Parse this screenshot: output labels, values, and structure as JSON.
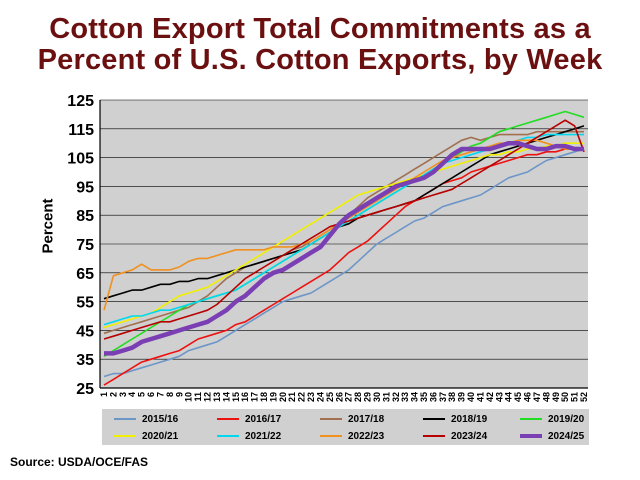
{
  "title_line1": "Cotton Export Total Commitments as a",
  "title_line2": "Percent of U.S. Cotton Exports, by Week",
  "source": "Source:  USDA/OCE/FAS",
  "chart_data": {
    "type": "line",
    "ylabel": "Percent",
    "ylim": [
      25,
      125
    ],
    "yticks": [
      25,
      35,
      45,
      55,
      65,
      75,
      85,
      95,
      105,
      115,
      125
    ],
    "xlim": [
      1,
      52
    ],
    "x": [
      1,
      2,
      3,
      4,
      5,
      6,
      7,
      8,
      9,
      10,
      11,
      12,
      13,
      14,
      15,
      16,
      17,
      18,
      19,
      20,
      21,
      22,
      23,
      24,
      25,
      26,
      27,
      28,
      29,
      30,
      31,
      32,
      33,
      34,
      35,
      36,
      37,
      38,
      39,
      40,
      41,
      42,
      43,
      44,
      45,
      46,
      47,
      48,
      49,
      50,
      51,
      52
    ],
    "grid": true,
    "legend_position": "bottom",
    "series": [
      {
        "name": "2015/16",
        "color": "#6d96c8",
        "width": 1.6,
        "values": [
          29,
          30,
          30,
          31,
          32,
          33,
          34,
          35,
          36,
          38,
          39,
          40,
          41,
          43,
          45,
          47,
          49,
          51,
          53,
          55,
          56,
          57,
          58,
          60,
          62,
          64,
          66,
          69,
          72,
          75,
          77,
          79,
          81,
          83,
          84,
          86,
          88,
          89,
          90,
          91,
          92,
          94,
          96,
          98,
          99,
          100,
          102,
          104,
          105,
          106,
          107,
          108
        ]
      },
      {
        "name": "2016/17",
        "color": "#ee1111",
        "width": 1.6,
        "values": [
          26,
          28,
          30,
          32,
          34,
          35,
          36,
          37,
          38,
          40,
          42,
          43,
          44,
          45,
          47,
          48,
          50,
          52,
          54,
          56,
          58,
          60,
          62,
          64,
          66,
          69,
          72,
          74,
          76,
          79,
          82,
          85,
          88,
          90,
          92,
          94,
          96,
          97,
          98,
          100,
          101,
          102,
          103,
          104,
          105,
          106,
          106,
          107,
          107,
          108,
          108,
          108
        ]
      },
      {
        "name": "2017/18",
        "color": "#a07050",
        "width": 1.6,
        "values": [
          44,
          45,
          46,
          47,
          48,
          49,
          50,
          51,
          52,
          53,
          55,
          57,
          60,
          63,
          65,
          67,
          68,
          69,
          70,
          71,
          73,
          74,
          76,
          78,
          80,
          82,
          85,
          88,
          91,
          93,
          95,
          97,
          99,
          101,
          103,
          105,
          107,
          109,
          111,
          112,
          111,
          112,
          113,
          113,
          113,
          113,
          114,
          114,
          114,
          114,
          114,
          114
        ]
      },
      {
        "name": "2018/19",
        "color": "#000000",
        "width": 1.6,
        "values": [
          56,
          57,
          58,
          59,
          59,
          60,
          61,
          61,
          62,
          62,
          63,
          63,
          64,
          65,
          66,
          67,
          68,
          69,
          70,
          71,
          72,
          73,
          75,
          77,
          79,
          81,
          82,
          84,
          85,
          86,
          87,
          88,
          89,
          90,
          92,
          94,
          96,
          98,
          100,
          102,
          104,
          106,
          107,
          108,
          109,
          110,
          111,
          112,
          113,
          114,
          115,
          116
        ]
      },
      {
        "name": "2019/20",
        "color": "#22dd22",
        "width": 1.6,
        "values": [
          36,
          38,
          40,
          42,
          44,
          46,
          48,
          50,
          52,
          54,
          55,
          56,
          57,
          58,
          59,
          61,
          63,
          65,
          67,
          69,
          71,
          73,
          75,
          77,
          79,
          81,
          83,
          85,
          87,
          89,
          91,
          93,
          95,
          97,
          99,
          101,
          103,
          105,
          107,
          109,
          110,
          112,
          114,
          115,
          116,
          117,
          118,
          119,
          120,
          121,
          120,
          119
        ]
      },
      {
        "name": "2020/21",
        "color": "#f0f000",
        "width": 1.6,
        "values": [
          46,
          47,
          48,
          49,
          50,
          51,
          53,
          55,
          57,
          58,
          59,
          60,
          62,
          64,
          66,
          68,
          70,
          72,
          74,
          76,
          78,
          80,
          82,
          84,
          86,
          88,
          90,
          92,
          93,
          94,
          95,
          96,
          97,
          98,
          99,
          100,
          101,
          102,
          103,
          104,
          105,
          106,
          106,
          107,
          107,
          108,
          108,
          109,
          109,
          110,
          110,
          110
        ]
      },
      {
        "name": "2021/22",
        "color": "#00d8f0",
        "width": 1.6,
        "values": [
          47,
          48,
          49,
          50,
          50,
          51,
          52,
          52,
          53,
          54,
          55,
          56,
          57,
          58,
          59,
          61,
          63,
          65,
          67,
          69,
          71,
          73,
          75,
          77,
          79,
          81,
          83,
          85,
          87,
          89,
          91,
          93,
          95,
          97,
          99,
          101,
          103,
          104,
          105,
          106,
          107,
          108,
          109,
          110,
          111,
          112,
          112,
          113,
          113,
          113,
          113,
          113
        ]
      },
      {
        "name": "2022/23",
        "color": "#f09020",
        "width": 1.6,
        "values": [
          52,
          64,
          65,
          66,
          68,
          66,
          66,
          66,
          67,
          69,
          70,
          70,
          71,
          72,
          73,
          73,
          73,
          73,
          74,
          74,
          74,
          75,
          76,
          78,
          80,
          82,
          84,
          86,
          88,
          90,
          92,
          94,
          96,
          98,
          100,
          102,
          104,
          105,
          106,
          107,
          108,
          109,
          110,
          110,
          111,
          111,
          111,
          110,
          109,
          108,
          108,
          108
        ]
      },
      {
        "name": "2023/24",
        "color": "#b80000",
        "width": 1.6,
        "values": [
          42,
          43,
          44,
          45,
          46,
          47,
          48,
          48,
          49,
          50,
          51,
          52,
          54,
          57,
          60,
          63,
          65,
          67,
          69,
          71,
          73,
          75,
          77,
          79,
          81,
          82,
          83,
          84,
          85,
          86,
          87,
          88,
          89,
          90,
          91,
          92,
          93,
          94,
          96,
          98,
          100,
          102,
          104,
          106,
          108,
          110,
          112,
          114,
          116,
          118,
          116,
          107
        ]
      },
      {
        "name": "2024/25",
        "color": "#7b3fb4",
        "width": 4.5,
        "values": [
          37,
          37,
          38,
          39,
          41,
          42,
          43,
          44,
          45,
          46,
          47,
          48,
          50,
          52,
          55,
          57,
          60,
          63,
          65,
          66,
          68,
          70,
          72,
          74,
          78,
          82,
          85,
          87,
          89,
          91,
          93,
          95,
          96,
          97,
          98,
          100,
          103,
          106,
          108,
          108,
          108,
          108,
          109,
          110,
          110,
          109,
          108,
          108,
          109,
          109,
          108,
          108
        ]
      }
    ]
  }
}
